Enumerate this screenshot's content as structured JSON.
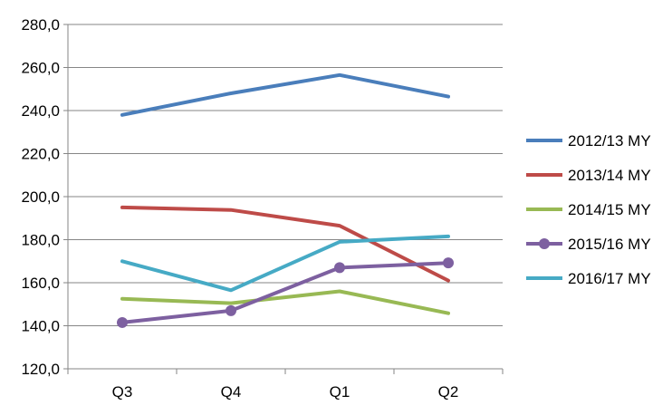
{
  "chart_data": {
    "type": "line",
    "title": "",
    "xlabel": "",
    "ylabel": "",
    "categories": [
      "Q3",
      "Q4",
      "Q1",
      "Q2"
    ],
    "ylim": [
      120,
      280
    ],
    "y_ticks": [
      "120,0",
      "140,0",
      "160,0",
      "180,0",
      "200,0",
      "220,0",
      "240,0",
      "260,0",
      "280,0"
    ],
    "grid": "horizontal",
    "legend_position": "right",
    "series": [
      {
        "name": "2012/13 MY",
        "color": "#4A7EBB",
        "marker": "none",
        "values": [
          238.0,
          248.0,
          256.5,
          246.5
        ]
      },
      {
        "name": "2013/14 MY",
        "color": "#BE4B48",
        "marker": "none",
        "values": [
          195.0,
          193.8,
          186.5,
          161.0
        ]
      },
      {
        "name": "2014/15 MY",
        "color": "#98B954",
        "marker": "none",
        "values": [
          152.5,
          150.5,
          156.0,
          145.8
        ]
      },
      {
        "name": "2015/16 MY",
        "color": "#7D60A0",
        "marker": "circle",
        "values": [
          141.5,
          147.0,
          167.0,
          169.2
        ]
      },
      {
        "name": "2016/17 MY",
        "color": "#46AAC5",
        "marker": "none",
        "values": [
          170.0,
          156.5,
          179.0,
          181.5
        ]
      }
    ]
  }
}
